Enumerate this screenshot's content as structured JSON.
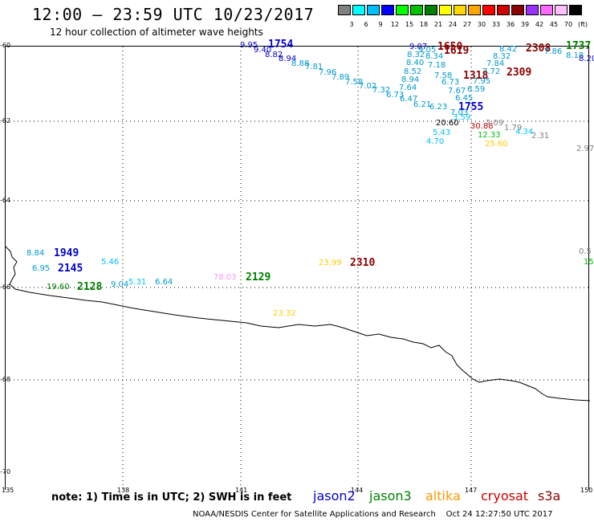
{
  "header": {
    "title": "12:00 – 23:59 UTC 10/23/2017",
    "subtitle": "12 hour collection of altimeter wave heights"
  },
  "color_scale": {
    "labels": [
      "3",
      "6",
      "9",
      "12",
      "15",
      "18",
      "21",
      "24",
      "27",
      "30",
      "33",
      "36",
      "39",
      "42",
      "45",
      "70",
      "(ft)"
    ],
    "colors": [
      "#808080",
      "#00ffff",
      "#00bfff",
      "#0000ff",
      "#00ff00",
      "#00c000",
      "#008000",
      "#ffff00",
      "#ffd700",
      "#ffa500",
      "#ff0000",
      "#d00000",
      "#8b0000",
      "#9b30ff",
      "#ff69ff",
      "#ffc0ff",
      "#000000"
    ]
  },
  "axes": {
    "lat_labels": [
      "-60",
      "-62",
      "-64",
      "-66",
      "-68",
      "-70"
    ],
    "lon_labels": [
      "135",
      "138",
      "141",
      "144",
      "147",
      "150"
    ]
  },
  "passes": [
    {
      "id": "1754",
      "color": "#0000cc"
    },
    {
      "id": "1650",
      "color": "#8b0000"
    },
    {
      "id": "1619",
      "color": "#8b0000"
    },
    {
      "id": "2308",
      "color": "#8b0000"
    },
    {
      "id": "1737",
      "color": "#008000"
    },
    {
      "id": "1318",
      "color": "#8b0000"
    },
    {
      "id": "2309",
      "color": "#8b0000"
    },
    {
      "id": "1755",
      "color": "#0000cc"
    },
    {
      "id": "1949",
      "color": "#0000cc"
    },
    {
      "id": "2145",
      "color": "#0000cc"
    },
    {
      "id": "2128",
      "color": "#008000"
    },
    {
      "id": "2129",
      "color": "#008000"
    },
    {
      "id": "2310",
      "color": "#8b0000"
    }
  ],
  "observations": [
    {
      "v": "9.95",
      "c": "#0000cc"
    },
    {
      "v": "9.40",
      "c": "#0000cc"
    },
    {
      "v": "8.82",
      "c": "#0000cc"
    },
    {
      "v": "8.94",
      "c": "#0000cc"
    },
    {
      "v": "8.88",
      "c": "#0099cc"
    },
    {
      "v": "7.81",
      "c": "#0099cc"
    },
    {
      "v": "7.96",
      "c": "#0099cc"
    },
    {
      "v": "7.89",
      "c": "#0099cc"
    },
    {
      "v": "7.58",
      "c": "#0099cc"
    },
    {
      "v": "7.02",
      "c": "#0099cc"
    },
    {
      "v": "7.32",
      "c": "#0099cc"
    },
    {
      "v": "6.73",
      "c": "#0099cc"
    },
    {
      "v": "6.47",
      "c": "#0099cc"
    },
    {
      "v": "6.21",
      "c": "#0099cc"
    },
    {
      "v": "6.23",
      "c": "#0099cc"
    },
    {
      "v": "9.07",
      "c": "#0000cc"
    },
    {
      "v": "9.05",
      "c": "#0099cc"
    },
    {
      "v": "8.32",
      "c": "#0099cc"
    },
    {
      "v": "8.34",
      "c": "#0099cc"
    },
    {
      "v": "8.40",
      "c": "#0099cc"
    },
    {
      "v": "7.18",
      "c": "#0099cc"
    },
    {
      "v": "8.52",
      "c": "#0099cc"
    },
    {
      "v": "7.58",
      "c": "#0099cc"
    },
    {
      "v": "8.94",
      "c": "#0099cc"
    },
    {
      "v": "6.73",
      "c": "#0099cc"
    },
    {
      "v": "7.64",
      "c": "#0099cc"
    },
    {
      "v": "7.67",
      "c": "#0099cc"
    },
    {
      "v": "8.42",
      "c": "#0099cc"
    },
    {
      "v": "8.32",
      "c": "#0099cc"
    },
    {
      "v": "7.84",
      "c": "#0099cc"
    },
    {
      "v": "7.72",
      "c": "#0099cc"
    },
    {
      "v": "7.95",
      "c": "#0099cc"
    },
    {
      "v": "6.59",
      "c": "#0099cc"
    },
    {
      "v": "6.45",
      "c": "#0099cc"
    },
    {
      "v": "7.03",
      "c": "#0099cc"
    },
    {
      "v": "7.86",
      "c": "#0099cc"
    },
    {
      "v": "8.18",
      "c": "#0099cc"
    },
    {
      "v": "8.20",
      "c": "#0000cc"
    },
    {
      "v": "20.60",
      "c": "#000000"
    },
    {
      "v": "30.88",
      "c": "#cc0000"
    },
    {
      "v": "2.09",
      "c": "#808080"
    },
    {
      "v": "1.79",
      "c": "#808080"
    },
    {
      "v": "5.43",
      "c": "#00bfff"
    },
    {
      "v": "4.70",
      "c": "#00bfff"
    },
    {
      "v": "12.33",
      "c": "#00c000"
    },
    {
      "v": "4.34",
      "c": "#00bfff"
    },
    {
      "v": "2.31",
      "c": "#808080"
    },
    {
      "v": "25.60",
      "c": "#ffcc00"
    },
    {
      "v": "2.97",
      "c": "#808080"
    },
    {
      "v": "3.59",
      "c": "#00bfff"
    },
    {
      "v": "0.5",
      "c": "#808080"
    },
    {
      "v": "15",
      "c": "#00c000"
    },
    {
      "v": "8.84",
      "c": "#0099cc"
    },
    {
      "v": "5.46",
      "c": "#00bfff"
    },
    {
      "v": "6.95",
      "c": "#0099cc"
    },
    {
      "v": "5.31",
      "c": "#00bfff"
    },
    {
      "v": "6.64",
      "c": "#0099cc"
    },
    {
      "v": "19.60",
      "c": "#008000"
    },
    {
      "v": "9.04",
      "c": "#0099cc"
    },
    {
      "v": "78.03",
      "c": "#ee99ee"
    },
    {
      "v": "23.99",
      "c": "#ffcc00"
    },
    {
      "v": "23.32",
      "c": "#ffcc00"
    }
  ],
  "note": "note: 1) Time is in UTC; 2) SWH is in feet",
  "legend": [
    {
      "label": "jason2",
      "color": "#0000cc"
    },
    {
      "label": "jason3",
      "color": "#008000"
    },
    {
      "label": "altika",
      "color": "#ff9900"
    },
    {
      "label": "cryosat",
      "color": "#cc0000"
    },
    {
      "label": "s3a",
      "color": "#8b0000"
    }
  ],
  "credit": "NOAA/NESDIS Center for Satellite Applications and Research",
  "timestamp": "Oct 24 12:27:50 UTC 2017"
}
